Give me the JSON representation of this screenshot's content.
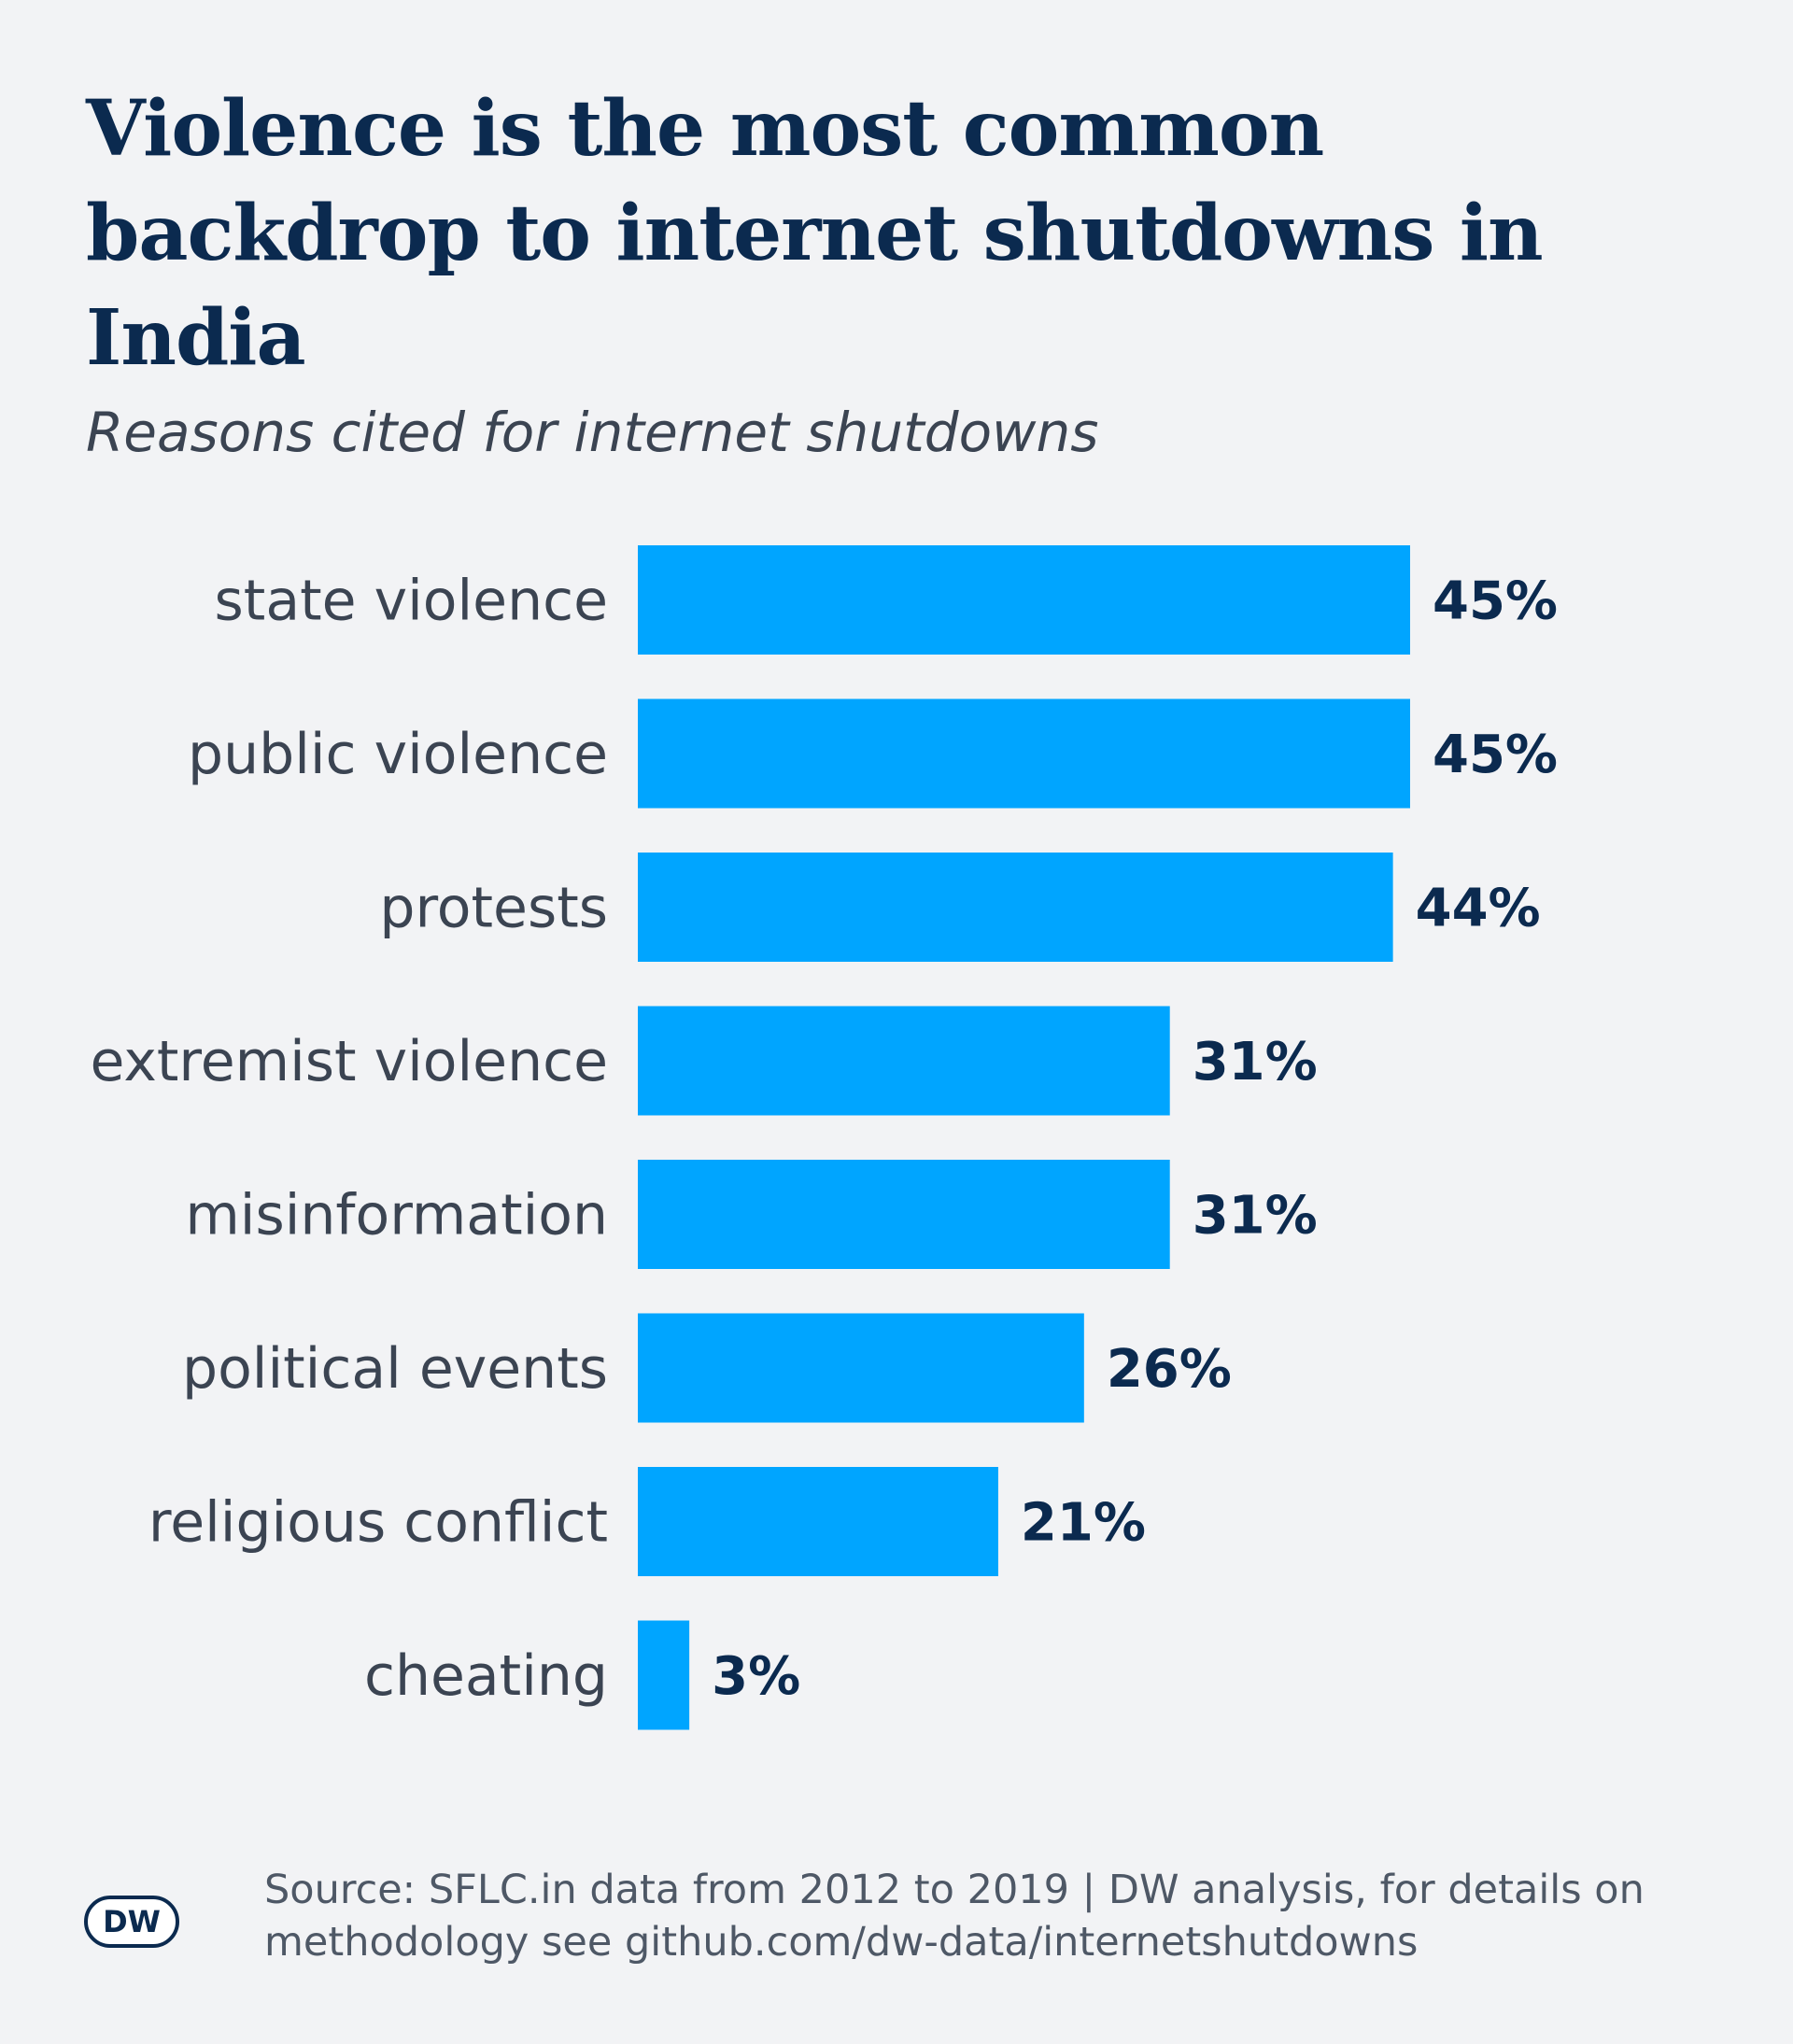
{
  "header": {
    "title": "Violence is the most common backdrop to internet shutdowns in India",
    "subtitle": "Reasons cited for internet shutdowns"
  },
  "chart_data": {
    "type": "bar",
    "orientation": "horizontal",
    "categories": [
      "state violence",
      "public violence",
      "protests",
      "extremist violence",
      "misinformation",
      "political events",
      "religious conflict",
      "cheating"
    ],
    "values": [
      45,
      45,
      44,
      31,
      31,
      26,
      21,
      3
    ],
    "value_labels": [
      "45%",
      "45%",
      "44%",
      "31%",
      "31%",
      "26%",
      "21%",
      "3%"
    ],
    "unit": "%",
    "bar_color": "#00a5ff",
    "grid": false
  },
  "footer": {
    "source": "Source: SFLC.in data from 2012 to 2019 | DW analysis, for details on methodology see github.com/dw-data/internetshutdowns",
    "logo_text": "DW"
  },
  "colors": {
    "background": "#f2f3f5",
    "title": "#0b2a4f",
    "bar": "#00a5ff"
  }
}
